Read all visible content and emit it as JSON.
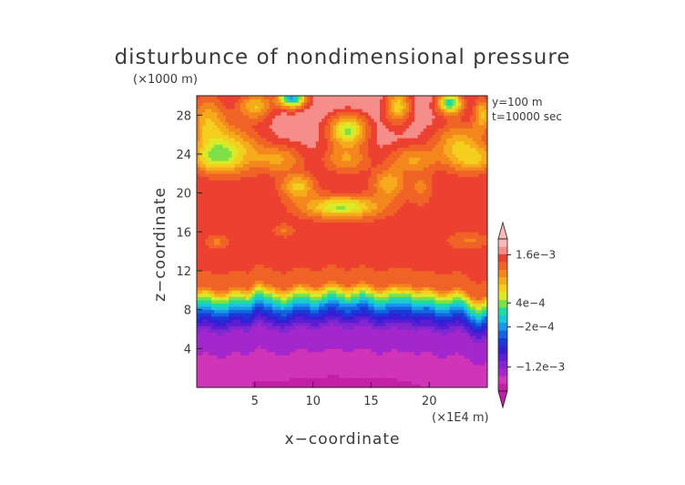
{
  "chart_data": {
    "type": "heatmap",
    "title": "disturbunce of nondimensional pressure",
    "z_unit_label": "(×1000 m)",
    "x_unit_label": "(×1E4 m)",
    "xlabel": "x−coordinate",
    "ylabel": "z−coordinate",
    "info": [
      "y=100  m",
      "t=10000 sec"
    ],
    "xlim": [
      0,
      25
    ],
    "ylim": [
      0,
      30
    ],
    "xticks": [
      5,
      10,
      15,
      20
    ],
    "yticks": [
      4,
      8,
      12,
      16,
      20,
      24,
      28
    ],
    "colorbar": {
      "tick_labels": [
        "1.6e−3",
        "4e−4",
        "−2e−4",
        "−1.2e−3"
      ],
      "tick_values": [
        0.0016,
        0.0004,
        -0.0002,
        -0.0012
      ],
      "min": -0.0018,
      "max": 0.002,
      "extend": "both",
      "colors": [
        "#c21ea6",
        "#d034b8",
        "#a327cc",
        "#7f28cf",
        "#5b1ed2",
        "#3420d4",
        "#1a3ad8",
        "#1464e0",
        "#1a96ea",
        "#1ac7d8",
        "#20dba0",
        "#7ee048",
        "#d8ea28",
        "#f5cf1f",
        "#f6ab1d",
        "#f4861e",
        "#f06326",
        "#ec4130",
        "#f58e8a",
        "#f9b9b7"
      ]
    },
    "fields": {
      "base_profile": {
        "description_levels_z_km": [
          0,
          5.5,
          6.5,
          7.2,
          7.8,
          8.3,
          8.8,
          9.3,
          9.8,
          10.3,
          30
        ],
        "values": [
          -0.0016,
          -0.0013,
          -0.0009,
          -0.0006,
          -0.0003,
          0.0,
          0.0003,
          0.0006,
          0.001,
          0.0014,
          0.0018
        ]
      },
      "upper_features": [
        {
          "x": 3.0,
          "z": 24.5,
          "sx": 2.6,
          "sz": 2.4,
          "amp": -0.0009
        },
        {
          "x": 1.0,
          "z": 27.5,
          "sx": 1.6,
          "sz": 3.0,
          "amp": -0.0008
        },
        {
          "x": 5.0,
          "z": 29.0,
          "sx": 1.5,
          "sz": 1.4,
          "amp": -0.0009
        },
        {
          "x": 8.2,
          "z": 29.8,
          "sx": 1.2,
          "sz": 1.0,
          "amp": -0.0019
        },
        {
          "x": 13.0,
          "z": 26.5,
          "sx": 1.6,
          "sz": 1.6,
          "amp": -0.0013
        },
        {
          "x": 17.3,
          "z": 29.0,
          "sx": 1.1,
          "sz": 1.8,
          "amp": -0.001
        },
        {
          "x": 21.8,
          "z": 29.3,
          "sx": 1.1,
          "sz": 1.1,
          "amp": -0.0016
        },
        {
          "x": 22.5,
          "z": 25.0,
          "sx": 2.2,
          "sz": 2.4,
          "amp": -0.0008
        },
        {
          "x": 24.6,
          "z": 28.2,
          "sx": 0.8,
          "sz": 1.8,
          "amp": -0.0009
        },
        {
          "x": 12.5,
          "z": 18.6,
          "sx": 3.2,
          "sz": 1.1,
          "amp": -0.0011
        },
        {
          "x": 8.7,
          "z": 20.7,
          "sx": 1.5,
          "sz": 1.3,
          "amp": -0.0008
        },
        {
          "x": 16.5,
          "z": 21.0,
          "sx": 1.4,
          "sz": 1.6,
          "amp": -0.0007
        },
        {
          "x": 19.3,
          "z": 20.5,
          "sx": 1.0,
          "sz": 1.6,
          "amp": -0.0004
        },
        {
          "x": 7.5,
          "z": 16.2,
          "sx": 0.8,
          "sz": 0.6,
          "amp": -0.0003
        },
        {
          "x": 23.5,
          "z": 15.2,
          "sx": 1.6,
          "sz": 0.7,
          "amp": -0.0003
        },
        {
          "x": 1.8,
          "z": 15.0,
          "sx": 0.8,
          "sz": 0.6,
          "amp": -0.0003
        }
      ]
    }
  }
}
